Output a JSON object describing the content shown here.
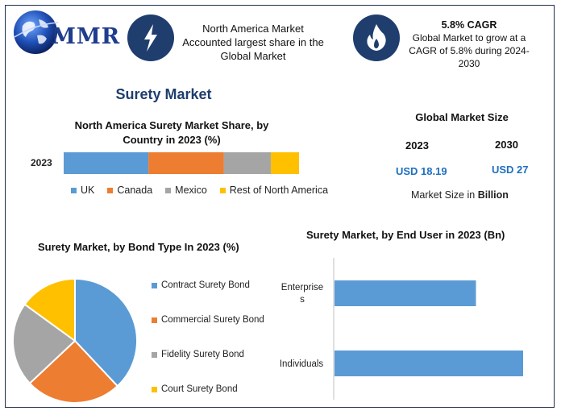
{
  "logo": {
    "text": "MMR",
    "icon": "globe-icon"
  },
  "header": {
    "box1": {
      "icon": "lightning-bolt-icon",
      "line1": "North America Market",
      "line2": "Accounted largest share in the",
      "line3": "Global Market"
    },
    "box2": {
      "icon": "flame-icon",
      "title": "5.8% CAGR",
      "line1": "Global Market to grow at a",
      "line2": "CAGR of 5.8% during 2024-",
      "line3": "2030"
    }
  },
  "main_title": "Surety Market",
  "market_size": {
    "title": "Global Market Size",
    "year1": "2023",
    "value1": "USD 18.19",
    "year2": "2030",
    "value2": "USD 27",
    "unit_label": "Market Size in",
    "unit_bold": "Billion"
  },
  "colors": {
    "uk": "#5b9bd5",
    "canada": "#ed7d31",
    "mexico": "#a5a5a5",
    "rest": "#ffc000",
    "navy": "#1f3e6e"
  },
  "chart_data": [
    {
      "type": "bar",
      "orientation": "horizontal-stacked",
      "title_line1": "North America Surety Market Share, by",
      "title_line2": "Country in 2023 (%)",
      "categories": [
        "2023"
      ],
      "series": [
        {
          "name": "UK",
          "values": [
            36
          ]
        },
        {
          "name": "Canada",
          "values": [
            32
          ]
        },
        {
          "name": "Mexico",
          "values": [
            20
          ]
        },
        {
          "name": "Rest of North America",
          "values": [
            12
          ]
        }
      ],
      "legend": "bottom"
    },
    {
      "type": "pie",
      "title": "Surety Market, by Bond Type In 2023 (%)",
      "labels": [
        "Contract Surety Bond",
        "Commercial Surety Bond",
        "Fidelity Surety Bond",
        "Court Surety Bond"
      ],
      "values": [
        38,
        25,
        22,
        15
      ],
      "legend": "right"
    },
    {
      "type": "bar",
      "orientation": "horizontal",
      "title": "Surety Market, by End User in 2023 (Bn)",
      "categories": [
        "Enterprises",
        "Individuals"
      ],
      "values": [
        7.8,
        10.4
      ],
      "xlim": [
        0,
        12
      ]
    }
  ]
}
